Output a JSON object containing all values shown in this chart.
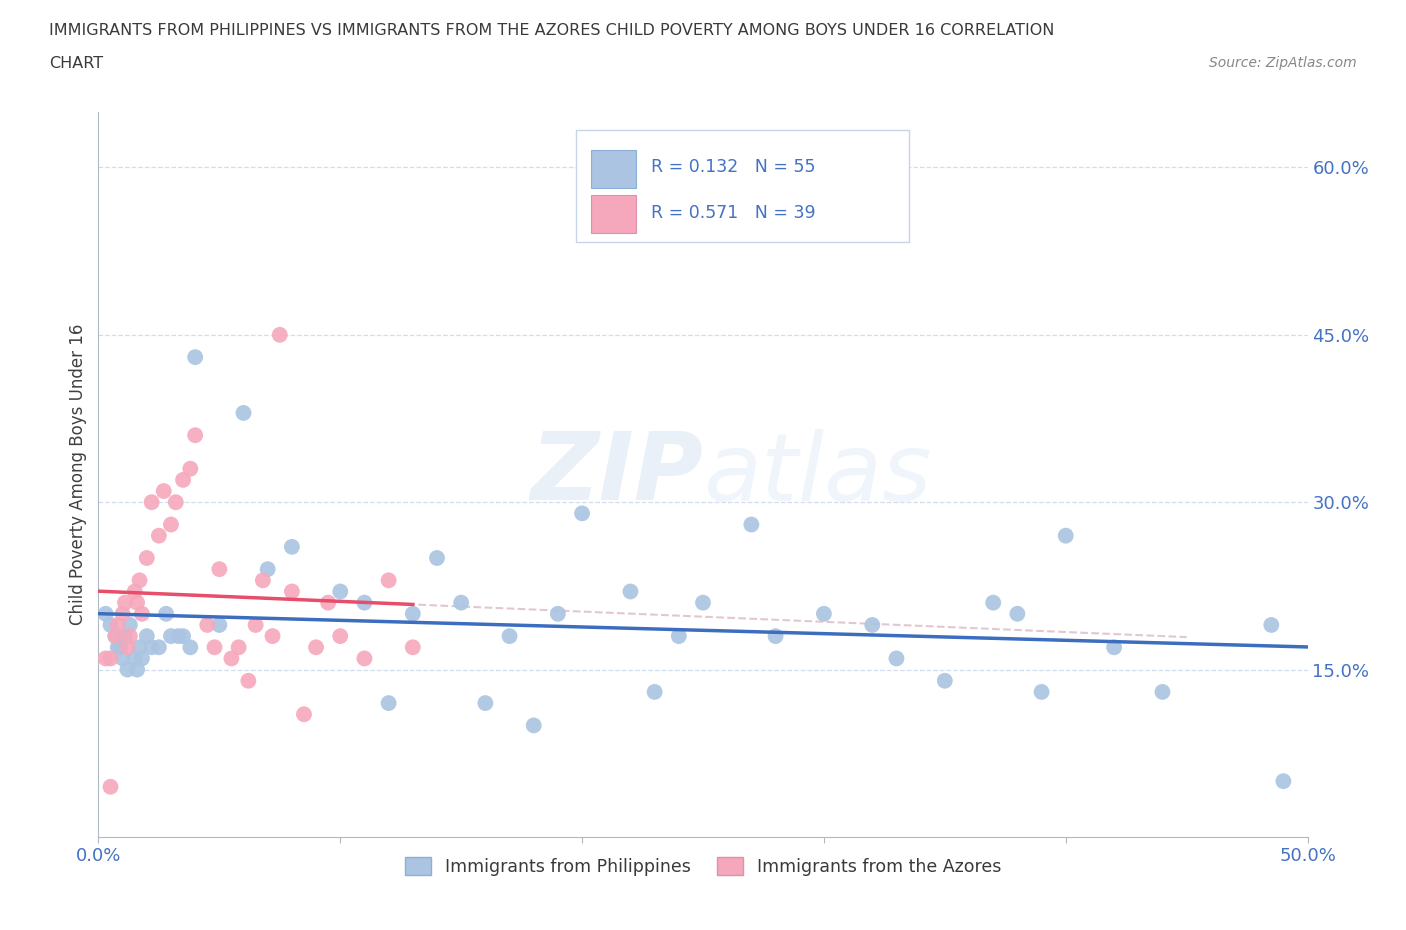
{
  "title_line1": "IMMIGRANTS FROM PHILIPPINES VS IMMIGRANTS FROM THE AZORES CHILD POVERTY AMONG BOYS UNDER 16 CORRELATION",
  "title_line2": "CHART",
  "source_text": "Source: ZipAtlas.com",
  "ylabel": "Child Poverty Among Boys Under 16",
  "xlim": [
    0.0,
    0.5
  ],
  "ylim": [
    0.0,
    0.65
  ],
  "yticks": [
    0.15,
    0.3,
    0.45,
    0.6
  ],
  "ytick_labels": [
    "15.0%",
    "30.0%",
    "45.0%",
    "60.0%"
  ],
  "R_blue": 0.132,
  "N_blue": 55,
  "R_pink": 0.571,
  "N_pink": 39,
  "color_blue": "#aac4e2",
  "color_pink": "#f5a8bc",
  "line_blue": "#3c6dbf",
  "line_pink": "#e84d6a",
  "line_pink_dash": "#d4b0be",
  "title_color": "#3a3a3a",
  "axis_color": "#4472c4",
  "legend1": "Immigrants from Philippines",
  "legend2": "Immigrants from the Azores",
  "blue_x": [
    0.003,
    0.005,
    0.007,
    0.008,
    0.009,
    0.01,
    0.011,
    0.012,
    0.013,
    0.015,
    0.016,
    0.017,
    0.018,
    0.02,
    0.022,
    0.025,
    0.028,
    0.03,
    0.033,
    0.035,
    0.038,
    0.04,
    0.05,
    0.06,
    0.07,
    0.08,
    0.1,
    0.11,
    0.12,
    0.13,
    0.14,
    0.15,
    0.16,
    0.17,
    0.18,
    0.19,
    0.2,
    0.22,
    0.23,
    0.24,
    0.25,
    0.27,
    0.28,
    0.3,
    0.32,
    0.33,
    0.35,
    0.37,
    0.38,
    0.39,
    0.4,
    0.42,
    0.44,
    0.485,
    0.49
  ],
  "blue_y": [
    0.2,
    0.19,
    0.18,
    0.17,
    0.17,
    0.16,
    0.18,
    0.15,
    0.19,
    0.16,
    0.15,
    0.17,
    0.16,
    0.18,
    0.17,
    0.17,
    0.2,
    0.18,
    0.18,
    0.18,
    0.17,
    0.43,
    0.19,
    0.38,
    0.24,
    0.26,
    0.22,
    0.21,
    0.12,
    0.2,
    0.25,
    0.21,
    0.12,
    0.18,
    0.1,
    0.2,
    0.29,
    0.22,
    0.13,
    0.18,
    0.21,
    0.28,
    0.18,
    0.2,
    0.19,
    0.16,
    0.14,
    0.21,
    0.2,
    0.13,
    0.27,
    0.17,
    0.13,
    0.19,
    0.05
  ],
  "pink_x": [
    0.003,
    0.005,
    0.007,
    0.008,
    0.01,
    0.011,
    0.012,
    0.013,
    0.015,
    0.016,
    0.017,
    0.018,
    0.02,
    0.022,
    0.025,
    0.027,
    0.03,
    0.032,
    0.035,
    0.038,
    0.04,
    0.045,
    0.048,
    0.05,
    0.055,
    0.058,
    0.062,
    0.065,
    0.068,
    0.072,
    0.075,
    0.08,
    0.085,
    0.09,
    0.095,
    0.1,
    0.11,
    0.12,
    0.13
  ],
  "pink_y": [
    0.16,
    0.16,
    0.18,
    0.19,
    0.2,
    0.21,
    0.17,
    0.18,
    0.22,
    0.21,
    0.23,
    0.2,
    0.25,
    0.3,
    0.27,
    0.31,
    0.28,
    0.3,
    0.32,
    0.33,
    0.36,
    0.19,
    0.17,
    0.24,
    0.16,
    0.17,
    0.14,
    0.19,
    0.23,
    0.18,
    0.45,
    0.22,
    0.11,
    0.17,
    0.21,
    0.18,
    0.16,
    0.23,
    0.17
  ],
  "pink_outlier_x": [
    0.005
  ],
  "pink_outlier_y": [
    0.045
  ]
}
